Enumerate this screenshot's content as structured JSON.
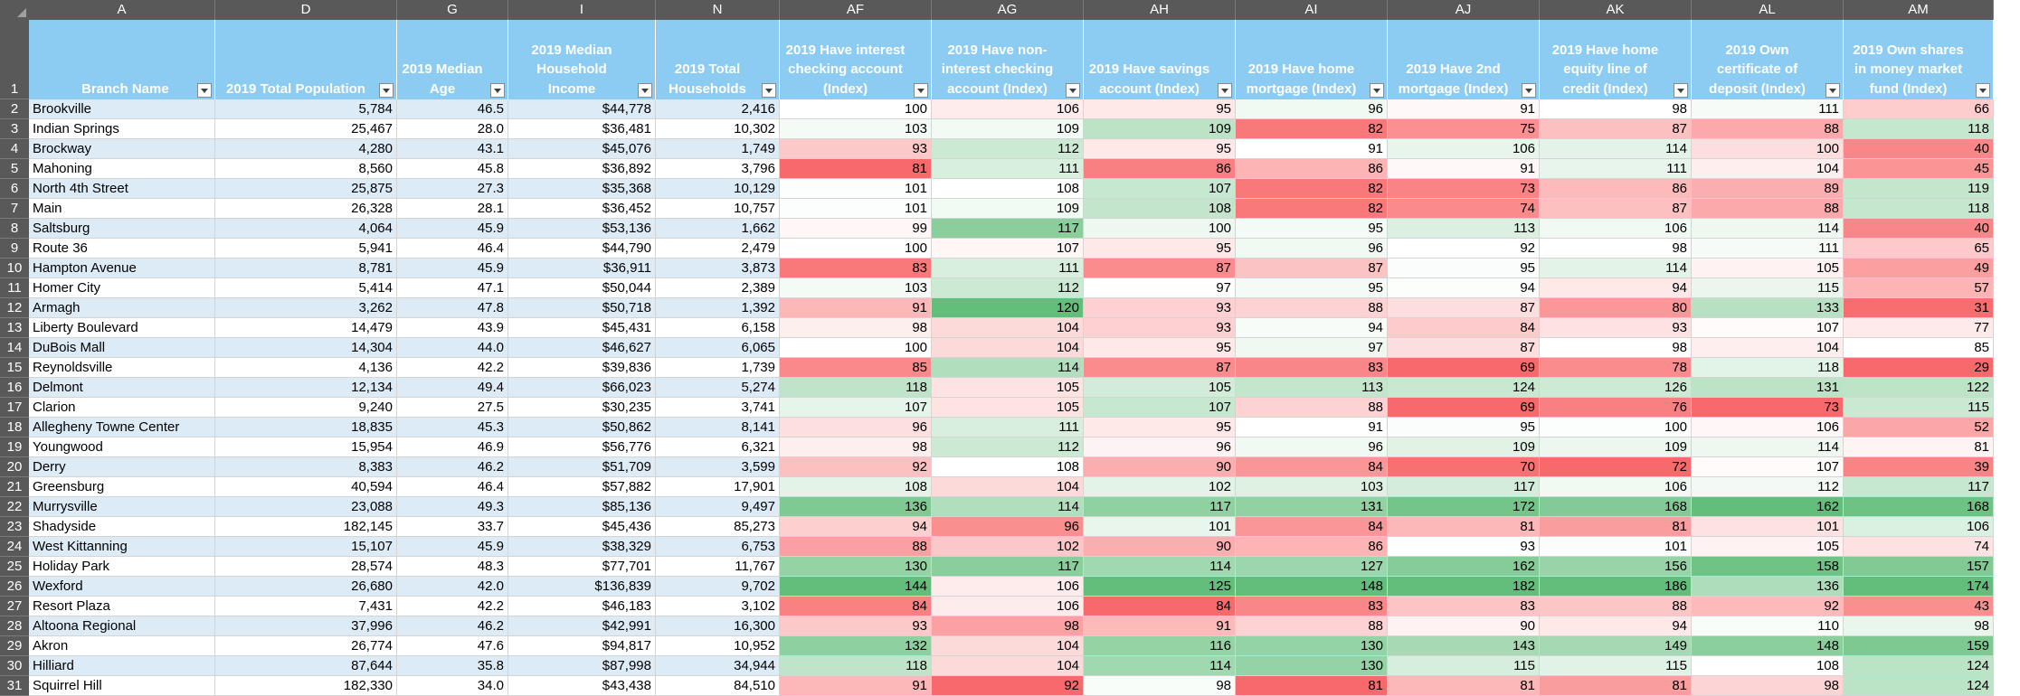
{
  "column_letters": [
    "A",
    "D",
    "G",
    "I",
    "N",
    "AF",
    "AG",
    "AH",
    "AI",
    "AJ",
    "AK",
    "AL",
    "AM"
  ],
  "headers": [
    "Branch Name",
    "2019 Total Population",
    "2019 Median Age",
    "2019 Median Household Income",
    "2019 Total Households",
    "2019 Have interest checking account (Index)",
    "2019 Have non-interest checking account (Index)",
    "2019 Have savings account (Index)",
    "2019 Have home mortgage (Index)",
    "2019 Have 2nd mortgage (Index)",
    "2019 Have home equity line of credit (Index)",
    "2019 Own certificate of deposit (Index)",
    "2019 Own shares in money market fund (Index)"
  ],
  "header_row_number": "1",
  "rows": [
    {
      "n": "2",
      "cells": [
        "Brookville",
        "5,784",
        "46.5",
        "$44,778",
        "2,416",
        "100",
        "106",
        "95",
        "96",
        "91",
        "98",
        "111",
        "66"
      ]
    },
    {
      "n": "3",
      "cells": [
        "Indian Springs",
        "25,467",
        "28.0",
        "$36,481",
        "10,302",
        "103",
        "109",
        "109",
        "82",
        "75",
        "87",
        "88",
        "118"
      ]
    },
    {
      "n": "4",
      "cells": [
        "Brockway",
        "4,280",
        "43.1",
        "$45,076",
        "1,749",
        "93",
        "112",
        "95",
        "91",
        "106",
        "114",
        "100",
        "40"
      ]
    },
    {
      "n": "5",
      "cells": [
        "Mahoning",
        "8,560",
        "45.8",
        "$36,892",
        "3,796",
        "81",
        "111",
        "86",
        "86",
        "91",
        "111",
        "104",
        "45"
      ]
    },
    {
      "n": "6",
      "cells": [
        "North 4th Street",
        "25,875",
        "27.3",
        "$35,368",
        "10,129",
        "101",
        "108",
        "107",
        "82",
        "73",
        "86",
        "89",
        "119"
      ]
    },
    {
      "n": "7",
      "cells": [
        "Main",
        "26,328",
        "28.1",
        "$36,452",
        "10,757",
        "101",
        "109",
        "108",
        "82",
        "74",
        "87",
        "88",
        "118"
      ]
    },
    {
      "n": "8",
      "cells": [
        "Saltsburg",
        "4,064",
        "45.9",
        "$53,136",
        "1,662",
        "99",
        "117",
        "100",
        "95",
        "113",
        "106",
        "114",
        "40"
      ]
    },
    {
      "n": "9",
      "cells": [
        "Route 36",
        "5,941",
        "46.4",
        "$44,790",
        "2,479",
        "100",
        "107",
        "95",
        "96",
        "92",
        "98",
        "111",
        "65"
      ]
    },
    {
      "n": "10",
      "cells": [
        "Hampton Avenue",
        "8,781",
        "45.9",
        "$36,911",
        "3,873",
        "83",
        "111",
        "87",
        "87",
        "95",
        "114",
        "105",
        "49"
      ]
    },
    {
      "n": "11",
      "cells": [
        "Homer City",
        "5,414",
        "47.1",
        "$50,044",
        "2,389",
        "103",
        "112",
        "97",
        "95",
        "94",
        "94",
        "115",
        "57"
      ]
    },
    {
      "n": "12",
      "cells": [
        "Armagh",
        "3,262",
        "47.8",
        "$50,718",
        "1,392",
        "91",
        "120",
        "93",
        "88",
        "87",
        "80",
        "133",
        "31"
      ]
    },
    {
      "n": "13",
      "cells": [
        "Liberty Boulevard",
        "14,479",
        "43.9",
        "$45,431",
        "6,158",
        "98",
        "104",
        "93",
        "94",
        "84",
        "93",
        "107",
        "77"
      ]
    },
    {
      "n": "14",
      "cells": [
        "DuBois Mall",
        "14,304",
        "44.0",
        "$46,627",
        "6,065",
        "100",
        "104",
        "95",
        "97",
        "87",
        "98",
        "104",
        "85"
      ]
    },
    {
      "n": "15",
      "cells": [
        "Reynoldsville",
        "4,136",
        "42.2",
        "$39,836",
        "1,739",
        "85",
        "114",
        "87",
        "83",
        "69",
        "78",
        "118",
        "29"
      ]
    },
    {
      "n": "16",
      "cells": [
        "Delmont",
        "12,134",
        "49.4",
        "$66,023",
        "5,274",
        "118",
        "105",
        "105",
        "113",
        "124",
        "126",
        "131",
        "122"
      ]
    },
    {
      "n": "17",
      "cells": [
        "Clarion",
        "9,240",
        "27.5",
        "$30,235",
        "3,741",
        "107",
        "105",
        "107",
        "88",
        "69",
        "76",
        "73",
        "115"
      ]
    },
    {
      "n": "18",
      "cells": [
        "Allegheny Towne Center",
        "18,835",
        "45.3",
        "$50,862",
        "8,141",
        "96",
        "111",
        "95",
        "91",
        "95",
        "100",
        "106",
        "52"
      ]
    },
    {
      "n": "19",
      "cells": [
        "Youngwood",
        "15,954",
        "46.9",
        "$56,776",
        "6,321",
        "98",
        "112",
        "96",
        "96",
        "109",
        "109",
        "114",
        "81"
      ]
    },
    {
      "n": "20",
      "cells": [
        "Derry",
        "8,383",
        "46.2",
        "$51,709",
        "3,599",
        "92",
        "108",
        "90",
        "84",
        "70",
        "72",
        "107",
        "39"
      ]
    },
    {
      "n": "21",
      "cells": [
        "Greensburg",
        "40,594",
        "46.4",
        "$57,882",
        "17,901",
        "108",
        "104",
        "102",
        "103",
        "117",
        "106",
        "112",
        "117"
      ]
    },
    {
      "n": "22",
      "cells": [
        "Murrysville",
        "23,088",
        "49.3",
        "$85,136",
        "9,497",
        "136",
        "114",
        "117",
        "131",
        "172",
        "168",
        "162",
        "168"
      ]
    },
    {
      "n": "23",
      "cells": [
        "Shadyside",
        "182,145",
        "33.7",
        "$45,436",
        "85,273",
        "94",
        "96",
        "101",
        "84",
        "81",
        "81",
        "101",
        "106"
      ]
    },
    {
      "n": "24",
      "cells": [
        "West Kittanning",
        "15,107",
        "45.9",
        "$38,329",
        "6,753",
        "88",
        "102",
        "90",
        "86",
        "93",
        "101",
        "105",
        "74"
      ]
    },
    {
      "n": "25",
      "cells": [
        "Holiday Park",
        "28,574",
        "48.3",
        "$77,701",
        "11,767",
        "130",
        "117",
        "114",
        "127",
        "162",
        "156",
        "158",
        "157"
      ]
    },
    {
      "n": "26",
      "cells": [
        "Wexford",
        "26,680",
        "42.0",
        "$136,839",
        "9,702",
        "144",
        "106",
        "125",
        "148",
        "182",
        "186",
        "136",
        "174"
      ]
    },
    {
      "n": "27",
      "cells": [
        "Resort Plaza",
        "7,431",
        "42.2",
        "$46,183",
        "3,102",
        "84",
        "106",
        "84",
        "83",
        "83",
        "88",
        "92",
        "43"
      ]
    },
    {
      "n": "28",
      "cells": [
        "Altoona Regional",
        "37,996",
        "46.2",
        "$42,991",
        "16,300",
        "93",
        "98",
        "91",
        "88",
        "90",
        "94",
        "110",
        "98"
      ]
    },
    {
      "n": "29",
      "cells": [
        "Akron",
        "26,774",
        "47.6",
        "$94,817",
        "10,952",
        "132",
        "104",
        "116",
        "130",
        "143",
        "149",
        "148",
        "159"
      ]
    },
    {
      "n": "30",
      "cells": [
        "Hilliard",
        "87,644",
        "35.8",
        "$87,998",
        "34,944",
        "118",
        "104",
        "114",
        "130",
        "115",
        "115",
        "108",
        "124"
      ]
    },
    {
      "n": "31",
      "cells": [
        "Squirrel Hill",
        "182,330",
        "34.0",
        "$43,438",
        "84,510",
        "91",
        "92",
        "98",
        "81",
        "81",
        "81",
        "98",
        "124"
      ]
    }
  ],
  "colors": {
    "header_bg": "#8ccbf2",
    "chrome_bg": "#595959",
    "band_bg": "#ddebf7",
    "scale_low": "#f8696b",
    "scale_mid": "#ffffff",
    "scale_high": "#63be7b"
  },
  "icons": [
    "filter-dropdown-icon",
    "select-all-corner-icon"
  ]
}
